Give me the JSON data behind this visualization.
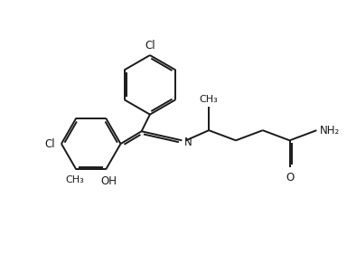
{
  "background_color": "#ffffff",
  "line_color": "#1a1a1a",
  "line_width": 1.4,
  "font_size": 8.5,
  "figsize": [
    3.84,
    2.92
  ],
  "dpi": 100,
  "xlim": [
    0,
    10
  ],
  "ylim": [
    0,
    7.8
  ]
}
